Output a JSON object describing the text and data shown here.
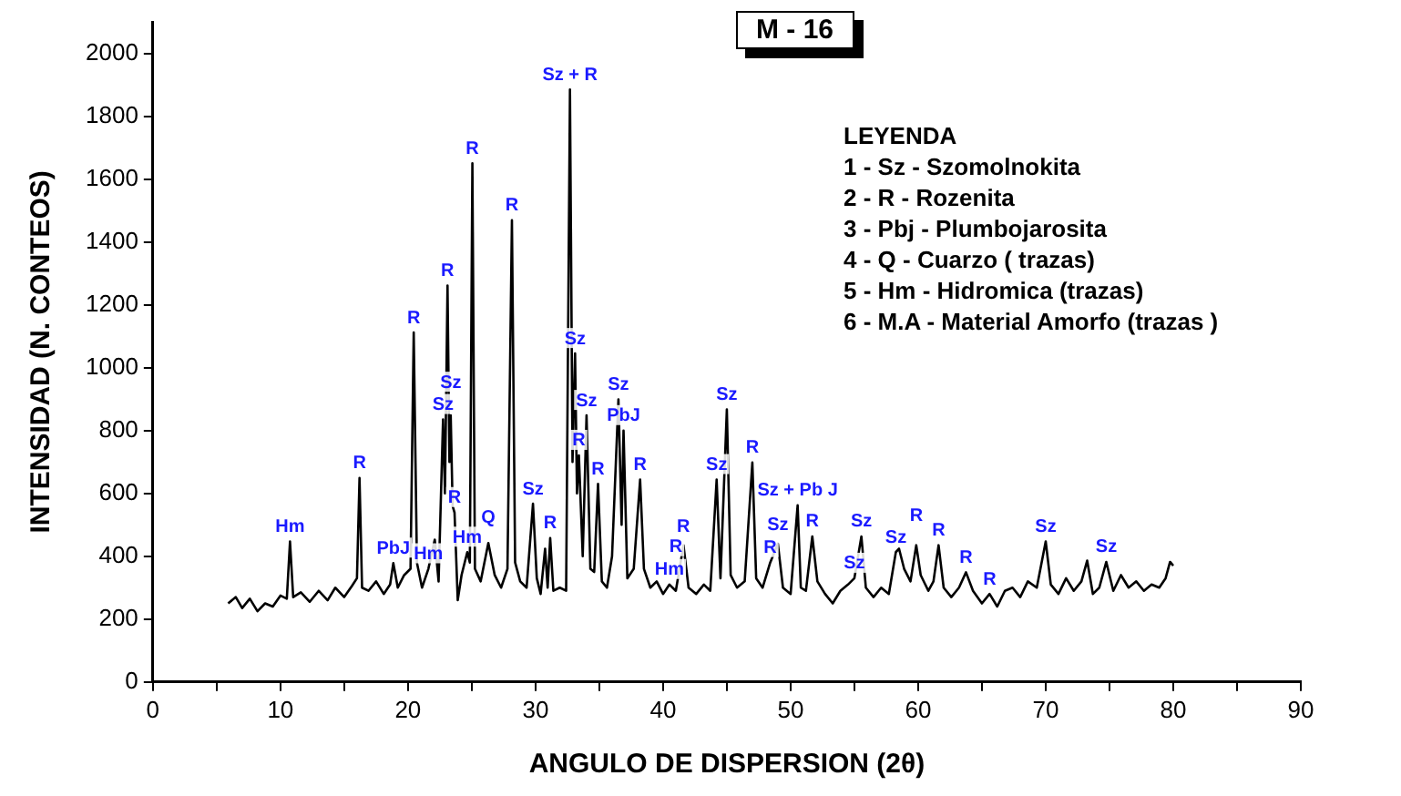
{
  "chart_data": {
    "type": "line",
    "title": "M - 16",
    "xlabel": "ANGULO DE DISPERSION (2θ)",
    "ylabel": "INTENSIDAD (N. CONTEOS)",
    "color": "#000000",
    "xlim": [
      0,
      90
    ],
    "ylim": [
      0,
      2100
    ],
    "xticks": [
      0,
      {
        "value": 5,
        "label": null
      },
      10,
      {
        "value": 15,
        "label": null
      },
      20,
      {
        "value": 25,
        "label": null
      },
      30,
      {
        "value": 35,
        "label": null
      },
      40,
      {
        "value": 45,
        "label": null
      },
      50,
      {
        "value": 55,
        "label": null
      },
      60,
      {
        "value": 65,
        "label": null
      },
      70,
      {
        "value": 75,
        "label": null
      },
      80,
      {
        "value": 85,
        "label": null
      },
      90
    ],
    "yticks": [
      0,
      200,
      400,
      600,
      800,
      1000,
      1200,
      1400,
      1600,
      1800,
      2000
    ],
    "grid": false,
    "legend": false,
    "x": [
      5.9,
      6.5,
      7,
      7.6,
      8.2,
      8.8,
      9.4,
      10,
      10.5,
      10.75,
      11,
      11.6,
      12.3,
      13,
      13.7,
      14.3,
      15,
      15.6,
      16,
      16.2,
      16.4,
      16.9,
      17.5,
      18.1,
      18.6,
      18.85,
      19.2,
      19.7,
      20.2,
      20.45,
      20.7,
      21.1,
      21.6,
      22.1,
      22.4,
      22.75,
      22.9,
      23.1,
      23.25,
      23.35,
      23.5,
      23.65,
      23.9,
      24.2,
      24.65,
      24.85,
      25.05,
      25.25,
      25.7,
      26.3,
      26.8,
      27.3,
      27.8,
      28.15,
      28.4,
      28.8,
      29.3,
      29.8,
      30.1,
      30.4,
      30.75,
      30.95,
      31.15,
      31.4,
      31.9,
      32.4,
      32.7,
      32.9,
      33.1,
      33.25,
      33.4,
      33.7,
      34,
      34.3,
      34.6,
      34.9,
      35.2,
      35.6,
      36,
      36.5,
      36.75,
      36.9,
      37.2,
      37.7,
      38.2,
      38.5,
      39,
      39.5,
      40,
      40.5,
      41,
      41.6,
      42,
      42.6,
      43.2,
      43.7,
      44.2,
      44.5,
      45,
      45.3,
      45.8,
      46.4,
      47,
      47.3,
      47.8,
      48.4,
      49,
      49.4,
      50,
      50.55,
      50.8,
      51.2,
      51.7,
      52.1,
      52.7,
      53.3,
      53.9,
      54.5,
      55,
      55.55,
      55.9,
      56.5,
      57.1,
      57.7,
      58.25,
      58.5,
      58.9,
      59.4,
      59.85,
      60.2,
      60.8,
      61.2,
      61.6,
      62,
      62.6,
      63.2,
      63.75,
      64.3,
      65,
      65.6,
      66.2,
      66.8,
      67.4,
      68,
      68.6,
      69.3,
      70,
      70.4,
      71,
      71.6,
      72.2,
      72.8,
      73.25,
      73.7,
      74.2,
      74.75,
      75.3,
      75.9,
      76.5,
      77.1,
      77.7,
      78.3,
      78.9,
      79.4,
      79.75,
      80
    ],
    "values": [
      250,
      270,
      235,
      265,
      225,
      250,
      240,
      275,
      265,
      447,
      270,
      285,
      255,
      290,
      260,
      300,
      270,
      305,
      330,
      649,
      300,
      290,
      320,
      280,
      310,
      378,
      300,
      340,
      360,
      1112,
      380,
      300,
      360,
      453,
      320,
      835,
      600,
      1261,
      700,
      848,
      560,
      539,
      260,
      340,
      413,
      380,
      1650,
      360,
      320,
      442,
      340,
      300,
      360,
      1469,
      380,
      320,
      300,
      567,
      330,
      280,
      424,
      300,
      458,
      290,
      300,
      290,
      1885,
      700,
      1045,
      600,
      721,
      400,
      848,
      360,
      350,
      630,
      320,
      300,
      400,
      899,
      500,
      800,
      330,
      360,
      644,
      360,
      300,
      320,
      280,
      310,
      290,
      435,
      300,
      280,
      310,
      290,
      644,
      330,
      867,
      340,
      300,
      320,
      698,
      330,
      300,
      380,
      440,
      300,
      280,
      562,
      300,
      290,
      463,
      320,
      280,
      250,
      290,
      310,
      330,
      463,
      300,
      270,
      300,
      280,
      413,
      424,
      360,
      320,
      435,
      340,
      290,
      320,
      435,
      300,
      270,
      300,
      349,
      290,
      250,
      280,
      240,
      290,
      300,
      270,
      320,
      300,
      447,
      310,
      280,
      330,
      290,
      320,
      386,
      280,
      300,
      382,
      290,
      340,
      300,
      320,
      290,
      310,
      300,
      330,
      382,
      370
    ],
    "annotations": [
      "LEYENDA",
      "1 - Sz - Szomolnokita",
      "2 - R - Rozenita",
      "3 - Pbj - Plumbojarosita",
      "4 - Q - Cuarzo ( trazas)",
      "5 - Hm - Hidromica (trazas)",
      "6 - M.A - Material Amorfo (trazas )",
      {
        "text": "Hm",
        "x": 10.75,
        "y": 447
      },
      {
        "text": "R",
        "x": 16.2,
        "y": 649
      },
      {
        "text": "PbJ",
        "x": 18.85,
        "y": 378
      },
      {
        "text": "Hm",
        "x": 21.6,
        "y": 360
      },
      {
        "text": "Sz",
        "x": 22.75,
        "y": 835
      },
      {
        "text": "R",
        "x": 20.45,
        "y": 1112
      },
      {
        "text": "R",
        "x": 23.1,
        "y": 1261
      },
      {
        "text": "Sz",
        "x": 23.35,
        "y": 848
      },
      {
        "text": "R",
        "x": 23.65,
        "y": 539
      },
      {
        "text": "Hm",
        "x": 24.65,
        "y": 413
      },
      {
        "text": "Q",
        "x": 26.3,
        "y": 442
      },
      {
        "text": "R",
        "x": 25.05,
        "y": 1650
      },
      {
        "text": "R",
        "x": 28.15,
        "y": 1469
      },
      {
        "text": "Sz",
        "x": 29.8,
        "y": 567
      },
      {
        "text": "R",
        "x": 31.15,
        "y": 458
      },
      {
        "text": "Sz + R",
        "x": 32.7,
        "y": 1885
      },
      {
        "text": "Sz",
        "x": 33.1,
        "y": 1045
      },
      {
        "text": "R",
        "x": 33.4,
        "y": 721
      },
      {
        "text": "Sz",
        "x": 34,
        "y": 848
      },
      {
        "text": "R",
        "x": 34.9,
        "y": 630
      },
      {
        "text": "Sz",
        "x": 36.5,
        "y": 899
      },
      {
        "text": "PbJ",
        "x": 36.9,
        "y": 800
      },
      {
        "text": "R",
        "x": 38.2,
        "y": 644
      },
      {
        "text": "Hm",
        "x": 40.5,
        "y": 310
      },
      {
        "text": "R",
        "x": 41,
        "y": 290
      },
      {
        "text": "R",
        "x": 41.6,
        "y": 435
      },
      {
        "text": "Sz",
        "x": 44.2,
        "y": 644
      },
      {
        "text": "Sz",
        "x": 45,
        "y": 867
      },
      {
        "text": "R",
        "x": 47,
        "y": 698
      },
      {
        "text": "R",
        "x": 48.4,
        "y": 380
      },
      {
        "text": "Sz",
        "x": 49,
        "y": 440
      },
      {
        "text": "Sz + Pb J",
        "x": 50.55,
        "y": 562
      },
      {
        "text": "R",
        "x": 51.7,
        "y": 463
      },
      {
        "text": "Sz",
        "x": 55,
        "y": 330
      },
      {
        "text": "Sz",
        "x": 55.55,
        "y": 463
      },
      {
        "text": "Sz",
        "x": 58.25,
        "y": 413
      },
      {
        "text": "R",
        "x": 59.85,
        "y": 435
      },
      {
        "text": "R",
        "x": 61.6,
        "y": 435
      },
      {
        "text": "R",
        "x": 63.75,
        "y": 349
      },
      {
        "text": "R",
        "x": 65.6,
        "y": 280
      },
      {
        "text": "Sz",
        "x": 70,
        "y": 447
      },
      {
        "text": "Sz",
        "x": 74.75,
        "y": 382
      }
    ]
  }
}
